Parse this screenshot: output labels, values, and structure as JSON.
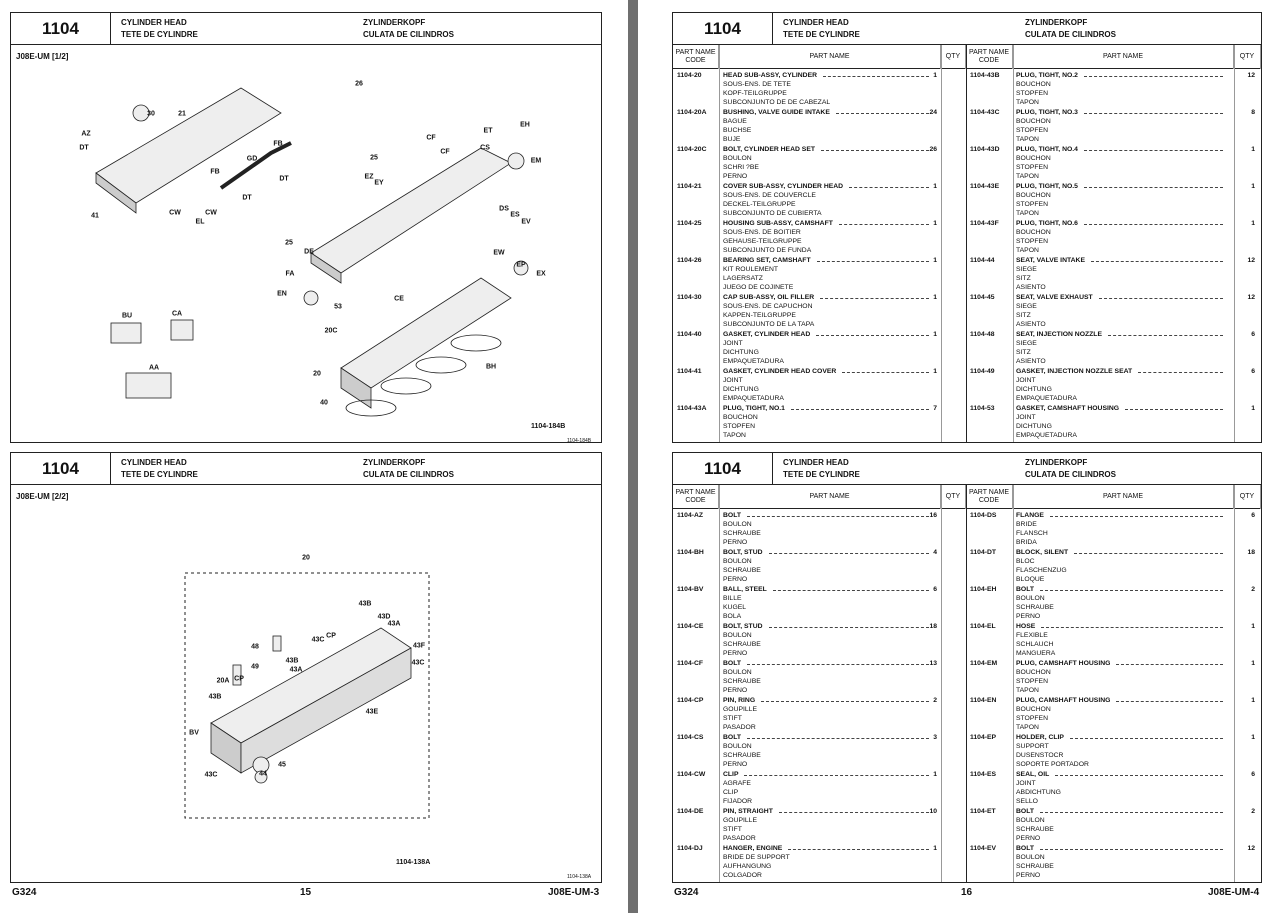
{
  "left_page": {
    "panels": [
      {
        "section": "1104",
        "title_en": "CYLINDER HEAD",
        "title_fr": "TETE DE CYLINDRE",
        "title_de": "ZYLINDERKOPF",
        "title_es": "CULATA DE CILINDROS",
        "model": "J08E-UM [1/2]",
        "callouts": [
          "26",
          "30",
          "21",
          "AZ",
          "ET",
          "EH",
          "DT",
          "FB",
          "CF",
          "CS",
          "GD",
          "CF",
          "EM",
          "FB",
          "DT",
          "25",
          "EZ",
          "EY",
          "DT",
          "CW",
          "CW",
          "EL",
          "41",
          "DS",
          "ES",
          "EV",
          "25",
          "DE",
          "EW",
          "EP",
          "EX",
          "FA",
          "EN",
          "CE",
          "53",
          "BU",
          "CA",
          "20C",
          "AA",
          "BH",
          "20",
          "40"
        ],
        "figure_id": "1104-184B",
        "figure_id_small": "1104-184B"
      },
      {
        "section": "1104",
        "title_en": "CYLINDER HEAD",
        "title_fr": "TETE DE CYLINDRE",
        "title_de": "ZYLINDERKOPF",
        "title_es": "CULATA DE CILINDROS",
        "model": "J08E-UM [2/2]",
        "callouts": [
          "20",
          "43B",
          "43D",
          "43A",
          "48",
          "43C",
          "CP",
          "43F",
          "49",
          "43B",
          "43A",
          "43C",
          "20A",
          "CP",
          "43B",
          "43E",
          "BV",
          "45",
          "43C",
          "44"
        ],
        "figure_id": "1104-138A",
        "figure_id_small": "1104-138A"
      }
    ],
    "footer": {
      "left": "G324",
      "center": "15",
      "right": "J08E-UM-3"
    }
  },
  "right_page": {
    "tables": [
      {
        "section": "1104",
        "title_en": "CYLINDER HEAD",
        "title_fr": "TETE DE CYLINDRE",
        "title_de": "ZYLINDERKOPF",
        "title_es": "CULATA DE CILINDROS",
        "col_code": "PART NAME CODE",
        "col_name": "PART NAME",
        "col_qty": "QTY",
        "left_rows": [
          {
            "code": "1104-20",
            "name": "HEAD SUB-ASSY, CYLINDER",
            "fr": "SOUS-ENS. DE TETE",
            "de": "KOPF-TEILGRUPPE",
            "es": "SUBCONJUNTO DE DE CABEZAL",
            "qty": "1"
          },
          {
            "code": "1104-20A",
            "name": "BUSHING, VALVE GUIDE INTAKE",
            "fr": "BAGUE",
            "de": "BUCHSE",
            "es": "BUJE",
            "qty": "24"
          },
          {
            "code": "1104-20C",
            "name": "BOLT, CYLINDER HEAD SET",
            "fr": "BOULON",
            "de": "SCHRI ?BE",
            "es": "PERNO",
            "qty": "26"
          },
          {
            "code": "1104-21",
            "name": "COVER SUB-ASSY, CYLINDER HEAD",
            "fr": "SOUS-ENS. DE COUVERCLE",
            "de": "DECKEL-TEILGRUPPE",
            "es": "SUBCONJUNTO DE CUBIERTA",
            "qty": "1"
          },
          {
            "code": "1104-25",
            "name": "HOUSING SUB-ASSY, CAMSHAFT",
            "fr": "SOUS-ENS. DE BOITIER",
            "de": "GEHAUSE-TEILGRUPPE",
            "es": "SUBCONJUNTO DE FUNDA",
            "qty": "1"
          },
          {
            "code": "1104-26",
            "name": "BEARING SET, CAMSHAFT",
            "fr": "KIT ROULEMENT",
            "de": "LAGERSATZ",
            "es": "JUEGO DE COJINETE",
            "qty": "1"
          },
          {
            "code": "1104-30",
            "name": "CAP SUB-ASSY, OIL FILLER",
            "fr": "SOUS-ENS. DE CAPUCHON",
            "de": "KAPPEN-TEILGRUPPE",
            "es": "SUBCONJUNTO DE LA TAPA",
            "qty": "1"
          },
          {
            "code": "1104-40",
            "name": "GASKET, CYLINDER HEAD",
            "fr": "JOINT",
            "de": "DICHTUNG",
            "es": "EMPAQUETADURA",
            "qty": "1"
          },
          {
            "code": "1104-41",
            "name": "GASKET, CYLINDER HEAD COVER",
            "fr": "JOINT",
            "de": "DICHTUNG",
            "es": "EMPAQUETADURA",
            "qty": "1"
          },
          {
            "code": "1104-43A",
            "name": "PLUG, TIGHT, NO.1",
            "fr": "BOUCHON",
            "de": "STOPFEN",
            "es": "TAPON",
            "qty": "7"
          }
        ],
        "right_rows": [
          {
            "code": "1104-43B",
            "name": "PLUG, TIGHT, NO.2",
            "fr": "BOUCHON",
            "de": "STOPFEN",
            "es": "TAPON",
            "qty": "12"
          },
          {
            "code": "1104-43C",
            "name": "PLUG, TIGHT, NO.3",
            "fr": "BOUCHON",
            "de": "STOPFEN",
            "es": "TAPON",
            "qty": "8"
          },
          {
            "code": "1104-43D",
            "name": "PLUG, TIGHT, NO.4",
            "fr": "BOUCHON",
            "de": "STOPFEN",
            "es": "TAPON",
            "qty": "1"
          },
          {
            "code": "1104-43E",
            "name": "PLUG, TIGHT, NO.5",
            "fr": "BOUCHON",
            "de": "STOPFEN",
            "es": "TAPON",
            "qty": "1"
          },
          {
            "code": "1104-43F",
            "name": "PLUG, TIGHT, NO.6",
            "fr": "BOUCHON",
            "de": "STOPFEN",
            "es": "TAPON",
            "qty": "1"
          },
          {
            "code": "1104-44",
            "name": "SEAT, VALVE INTAKE",
            "fr": "SIEGE",
            "de": "SITZ",
            "es": "ASIENTO",
            "qty": "12"
          },
          {
            "code": "1104-45",
            "name": "SEAT, VALVE EXHAUST",
            "fr": "SIEGE",
            "de": "SITZ",
            "es": "ASIENTO",
            "qty": "12"
          },
          {
            "code": "1104-48",
            "name": "SEAT, INJECTION NOZZLE",
            "fr": "SIEGE",
            "de": "SITZ",
            "es": "ASIENTO",
            "qty": "6"
          },
          {
            "code": "1104-49",
            "name": "GASKET, INJECTION NOZZLE SEAT",
            "fr": "JOINT",
            "de": "DICHTUNG",
            "es": "EMPAQUETADURA",
            "qty": "6"
          },
          {
            "code": "1104-53",
            "name": "GASKET, CAMSHAFT HOUSING",
            "fr": "JOINT",
            "de": "DICHTUNG",
            "es": "EMPAQUETADURA",
            "qty": "1"
          }
        ]
      },
      {
        "section": "1104",
        "title_en": "CYLINDER HEAD",
        "title_fr": "TETE DE CYLINDRE",
        "title_de": "ZYLINDERKOPF",
        "title_es": "CULATA DE CILINDROS",
        "col_code": "PART NAME CODE",
        "col_name": "PART NAME",
        "col_qty": "QTY",
        "left_rows": [
          {
            "code": "1104-AZ",
            "name": "BOLT",
            "fr": "BOULON",
            "de": "SCHRAUBE",
            "es": "PERNO",
            "qty": "16"
          },
          {
            "code": "1104-BH",
            "name": "BOLT, STUD",
            "fr": "BOULON",
            "de": "SCHRAUBE",
            "es": "PERNO",
            "qty": "4"
          },
          {
            "code": "1104-BV",
            "name": "BALL, STEEL",
            "fr": "BILLE",
            "de": "KUGEL",
            "es": "BOLA",
            "qty": "6"
          },
          {
            "code": "1104-CE",
            "name": "BOLT, STUD",
            "fr": "BOULON",
            "de": "SCHRAUBE",
            "es": "PERNO",
            "qty": "18"
          },
          {
            "code": "1104-CF",
            "name": "BOLT",
            "fr": "BOULON",
            "de": "SCHRAUBE",
            "es": "PERNO",
            "qty": "13"
          },
          {
            "code": "1104-CP",
            "name": "PIN, RING",
            "fr": "GOUPILLE",
            "de": "STIFT",
            "es": "PASADOR",
            "qty": "2"
          },
          {
            "code": "1104-CS",
            "name": "BOLT",
            "fr": "BOULON",
            "de": "SCHRAUBE",
            "es": "PERNO",
            "qty": "3"
          },
          {
            "code": "1104-CW",
            "name": "CLIP",
            "fr": "AGRAFE",
            "de": "CLIP",
            "es": "FIJADOR",
            "qty": "1"
          },
          {
            "code": "1104-DE",
            "name": "PIN, STRAIGHT",
            "fr": "GOUPILLE",
            "de": "STIFT",
            "es": "PASADOR",
            "qty": "10"
          },
          {
            "code": "1104-DJ",
            "name": "HANGER, ENGINE",
            "fr": "BRIDE DE SUPPORT",
            "de": "AUFHANGUNG",
            "es": "COLGADOR",
            "qty": "1"
          }
        ],
        "right_rows": [
          {
            "code": "1104-DS",
            "name": "FLANGE",
            "fr": "BRIDE",
            "de": "FLANSCH",
            "es": "BRIDA",
            "qty": "6"
          },
          {
            "code": "1104-DT",
            "name": "BLOCK, SILENT",
            "fr": "BLOC",
            "de": "FLASCHENZUG",
            "es": "BLOQUE",
            "qty": "18"
          },
          {
            "code": "1104-EH",
            "name": "BOLT",
            "fr": "BOULON",
            "de": "SCHRAUBE",
            "es": "PERNO",
            "qty": "2"
          },
          {
            "code": "1104-EL",
            "name": "HOSE",
            "fr": "FLEXIBLE",
            "de": "SCHLAUCH",
            "es": "MANGUERA",
            "qty": "1"
          },
          {
            "code": "1104-EM",
            "name": "PLUG, CAMSHAFT HOUSING",
            "fr": "BOUCHON",
            "de": "STOPFEN",
            "es": "TAPON",
            "qty": "1"
          },
          {
            "code": "1104-EN",
            "name": "PLUG, CAMSHAFT HOUSING",
            "fr": "BOUCHON",
            "de": "STOPFEN",
            "es": "TAPON",
            "qty": "1"
          },
          {
            "code": "1104-EP",
            "name": "HOLDER, CLIP",
            "fr": "SUPPORT",
            "de": "DUSENSTOCR",
            "es": "SOPORTE PORTADOR",
            "qty": "1"
          },
          {
            "code": "1104-ES",
            "name": "SEAL, OIL",
            "fr": "JOINT",
            "de": "ABDICHTUNG",
            "es": "SELLO",
            "qty": "6"
          },
          {
            "code": "1104-ET",
            "name": "BOLT",
            "fr": "BOULON",
            "de": "SCHRAUBE",
            "es": "PERNO",
            "qty": "2"
          },
          {
            "code": "1104-EV",
            "name": "BOLT",
            "fr": "BOULON",
            "de": "SCHRAUBE",
            "es": "PERNO",
            "qty": "12"
          }
        ]
      }
    ],
    "footer": {
      "left": "G324",
      "center": "16",
      "right": "J08E-UM-4"
    }
  }
}
